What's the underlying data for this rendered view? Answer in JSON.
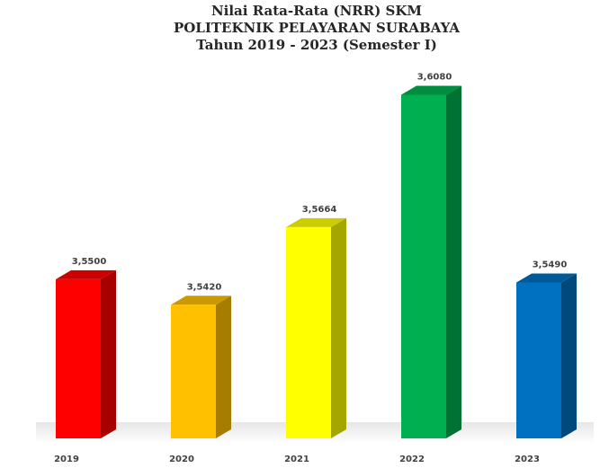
{
  "chart_data": {
    "type": "bar3d",
    "title": [
      "Nilai Rata-Rata (NRR) SKM",
      "POLITEKNIK PELAYARAN SURABAYA",
      "Tahun 2019 - 2023 (Semester I)"
    ],
    "categories": [
      "2019",
      "2020",
      "2021",
      "2022",
      "2023"
    ],
    "values": [
      3.55,
      3.542,
      3.5664,
      3.608,
      3.549
    ],
    "value_labels": [
      "3,5500",
      "3,5420",
      "3,5664",
      "3,6080",
      "3,5490"
    ],
    "colors": [
      "#ff0000",
      "#ffc000",
      "#ffff00",
      "#00b050",
      "#0070c0"
    ],
    "ylim": [
      3.5,
      3.62
    ]
  }
}
